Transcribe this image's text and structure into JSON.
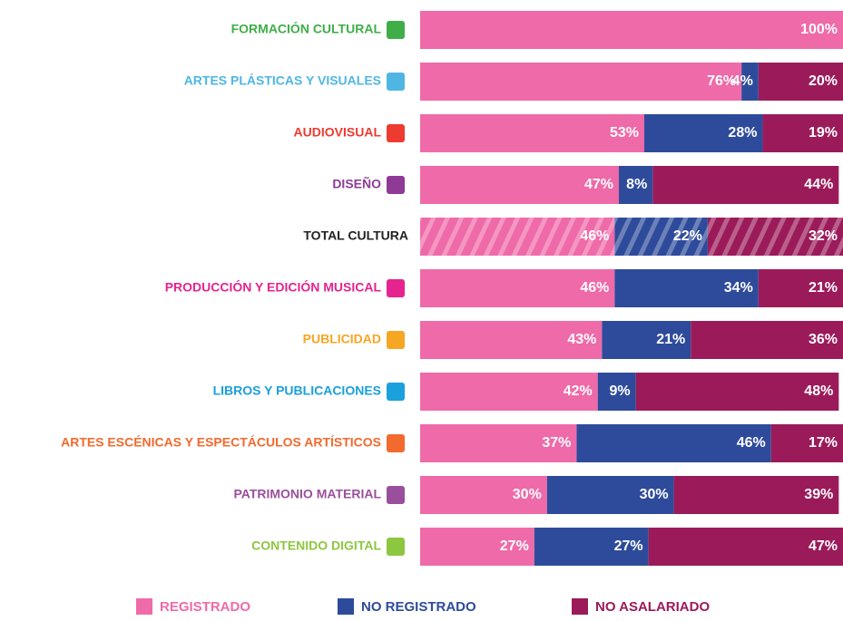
{
  "chart_data": {
    "type": "stacked_bar_horizontal",
    "categories": [
      "FORMACIÓN CULTURAL",
      "ARTES PLÁSTICAS Y VISUALES",
      "AUDIOVISUAL",
      "DISEÑO",
      "TOTAL CULTURA",
      "PRODUCCIÓN Y EDICIÓN MUSICAL",
      "PUBLICIDAD",
      "LIBROS Y PUBLICACIONES",
      "ARTES ESCÉNICAS Y ESPECTÁCULOS ARTÍSTICOS",
      "PATRIMONIO MATERIAL",
      "CONTENIDO DIGITAL"
    ],
    "category_colors": [
      "#3fae49",
      "#4fb6e4",
      "#ee3b2f",
      "#8e3a96",
      "#222222",
      "#e5248f",
      "#f5a623",
      "#1aa0dc",
      "#f26a2e",
      "#9a4f9c",
      "#8dc63f"
    ],
    "hatched_index": 4,
    "xlim": [
      0,
      100
    ],
    "series": [
      {
        "name": "REGISTRADO",
        "color": "#ef6aa8",
        "values": [
          100,
          76,
          53,
          47,
          46,
          46,
          43,
          42,
          37,
          30,
          27
        ],
        "value_labels": [
          "100%",
          "76%",
          "53%",
          "47%",
          "46%",
          "46%",
          "43%",
          "42%",
          "37%",
          "30%",
          "27%"
        ]
      },
      {
        "name": "NO REGISTRADO",
        "color": "#2e4b9b",
        "values": [
          0,
          4,
          28,
          8,
          22,
          34,
          21,
          9,
          46,
          30,
          27
        ],
        "value_labels": [
          null,
          "4%",
          "28%",
          "8%",
          "22%",
          "34%",
          "21%",
          "9%",
          "46%",
          "30%",
          "27%"
        ]
      },
      {
        "name": "NO ASALARIADO",
        "color": "#9b1b5a",
        "values": [
          0,
          20,
          19,
          44,
          32,
          21,
          36,
          48,
          17,
          39,
          47
        ],
        "value_labels": [
          null,
          "20%",
          "19%",
          "44%",
          "32%",
          "21%",
          "36%",
          "48%",
          "17%",
          "39%",
          "47%"
        ]
      }
    ]
  }
}
